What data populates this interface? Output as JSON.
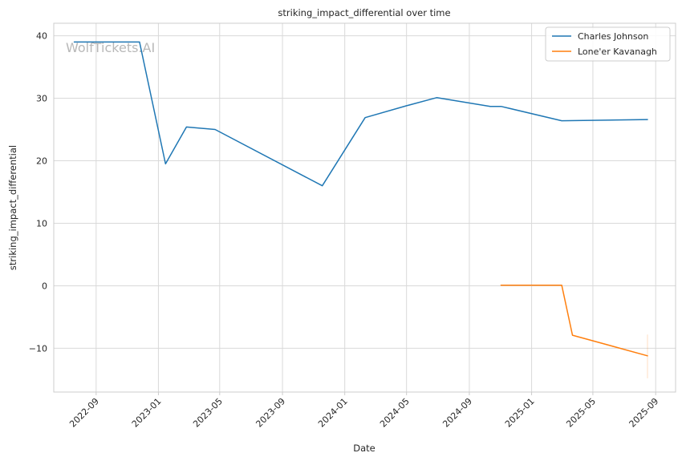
{
  "chart_data": {
    "type": "line",
    "title": "striking_impact_differential over time",
    "xlabel": "Date",
    "ylabel": "striking_impact_differential",
    "watermark": "WolfTickets.AI",
    "x_ticks": [
      "2022-09",
      "2023-01",
      "2023-05",
      "2023-09",
      "2024-01",
      "2024-05",
      "2024-09",
      "2025-01",
      "2025-05",
      "2025-09"
    ],
    "y_ticks": [
      -10,
      0,
      10,
      20,
      30,
      40
    ],
    "xlim": [
      "2022-06-10",
      "2025-10-10"
    ],
    "ylim": [
      -17,
      42
    ],
    "grid": true,
    "legend_position": "top-right",
    "series": [
      {
        "name": "Charles Johnson",
        "color": "#1f77b4",
        "points": [
          {
            "x": "2022-07-20",
            "y": 39
          },
          {
            "x": "2022-11-25",
            "y": 39
          },
          {
            "x": "2023-01-15",
            "y": 19.5
          },
          {
            "x": "2023-02-25",
            "y": 25.4
          },
          {
            "x": "2023-04-22",
            "y": 25
          },
          {
            "x": "2023-11-18",
            "y": 16
          },
          {
            "x": "2024-02-10",
            "y": 26.9
          },
          {
            "x": "2024-05-01",
            "y": 28.8
          },
          {
            "x": "2024-06-29",
            "y": 30.1
          },
          {
            "x": "2024-10-12",
            "y": 28.7
          },
          {
            "x": "2024-11-02",
            "y": 28.7
          },
          {
            "x": "2025-03-01",
            "y": 26.4
          },
          {
            "x": "2025-08-16",
            "y": 26.6
          }
        ]
      },
      {
        "name": "Lone'er Kavanagh",
        "color": "#ff7f0e",
        "points": [
          {
            "x": "2024-11-02",
            "y": 0.1
          },
          {
            "x": "2025-03-01",
            "y": 0.1
          },
          {
            "x": "2025-03-22",
            "y": -7.9
          },
          {
            "x": "2025-08-16",
            "y": -11.2
          }
        ]
      }
    ]
  }
}
